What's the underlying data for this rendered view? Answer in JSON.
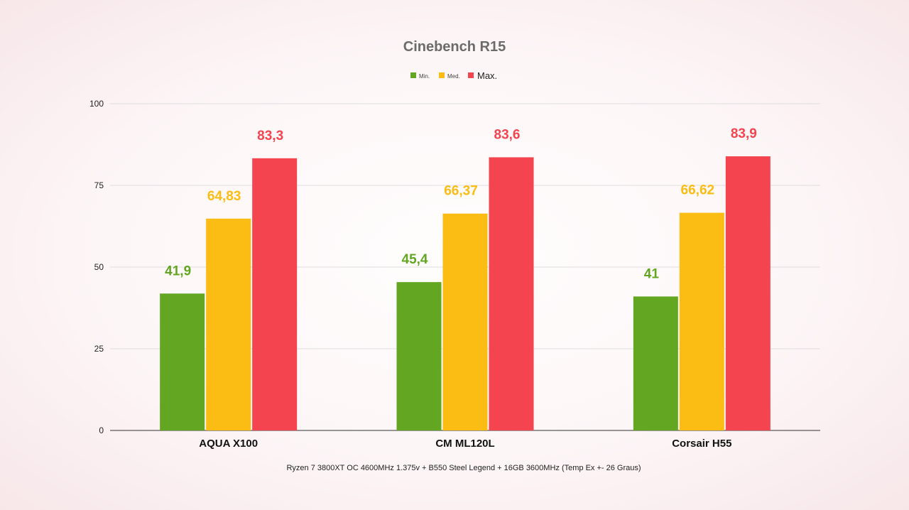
{
  "chart_data": {
    "type": "bar",
    "title": "Cinebench R15",
    "caption": "Ryzen 7 3800XT OC 4600MHz 1.375v + B550 Steel Legend + 16GB 3600MHz (Temp Ex +- 26 Graus)",
    "categories": [
      "AQUA X100",
      "CM ML120L",
      "Corsair H55"
    ],
    "series": [
      {
        "name": "Min.",
        "color": "#63a621",
        "values": [
          41.9,
          45.4,
          41
        ],
        "labels": [
          "41,9",
          "45,4",
          "41"
        ]
      },
      {
        "name": "Med.",
        "color": "#fbbc13",
        "values": [
          64.83,
          66.37,
          66.62
        ],
        "labels": [
          "64,83",
          "66,37",
          "66,62"
        ]
      },
      {
        "name": "Max.",
        "color": "#f3444f",
        "values": [
          83.3,
          83.6,
          83.9
        ],
        "labels": [
          "83,3",
          "83,6",
          "83,9"
        ]
      }
    ],
    "ylim": [
      0,
      100
    ],
    "yticks": [
      0,
      25,
      50,
      75,
      100
    ],
    "grid": true,
    "legend": "top-center",
    "xlabel": "",
    "ylabel": ""
  }
}
